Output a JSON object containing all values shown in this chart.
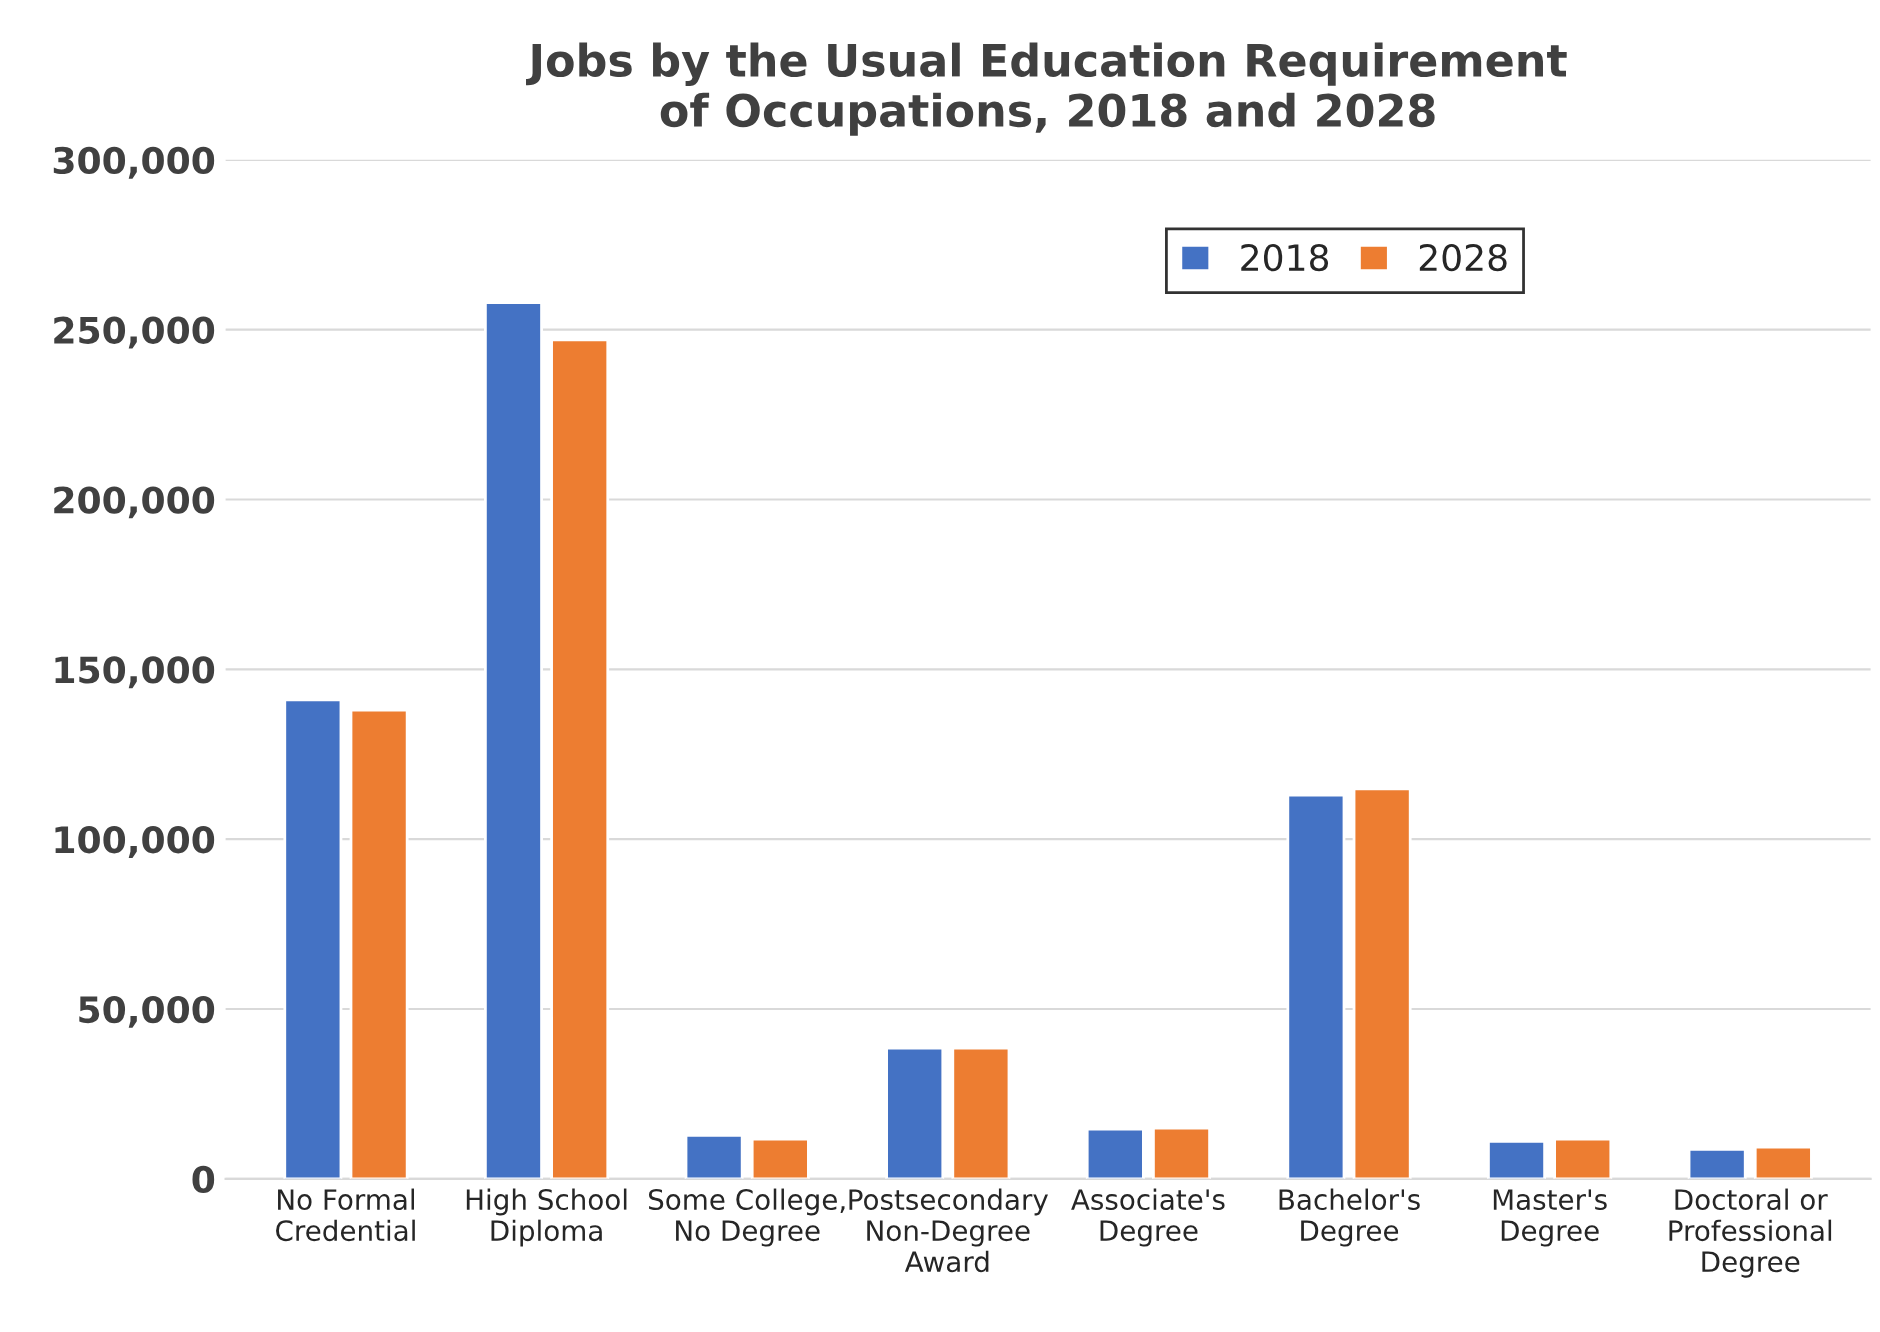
{
  "chart_data": {
    "type": "bar",
    "title": "Jobs by the Usual Education Requirement\nof Occupations, 2018 and 2028",
    "categories": [
      "No Formal\nCredential",
      "High School\nDiploma",
      "Some College,\nNo Degree",
      "Postsecondary\nNon-Degree\nAward",
      "Associate's\nDegree",
      "Bachelor's\nDegree",
      "Master's\nDegree",
      "Doctoral or\nProfessional\nDegree"
    ],
    "series": [
      {
        "name": "2018",
        "color": "#4472c4",
        "values": [
          141000,
          258000,
          12800,
          38500,
          14600,
          113000,
          11000,
          8700
        ]
      },
      {
        "name": "2028",
        "color": "#ed7d31",
        "values": [
          138000,
          247000,
          11700,
          38500,
          14900,
          114800,
          11700,
          9300
        ]
      }
    ],
    "ylim": [
      0,
      300000
    ],
    "yticks": [
      {
        "value": 0,
        "label": "0"
      },
      {
        "value": 50000,
        "label": "50,000"
      },
      {
        "value": 100000,
        "label": "100,000"
      },
      {
        "value": 150000,
        "label": "150,000"
      },
      {
        "value": 200000,
        "label": "200,000"
      },
      {
        "value": 250000,
        "label": "250,000"
      },
      {
        "value": 300000,
        "label": "300,000"
      }
    ],
    "grid": "y",
    "legend": "top right"
  }
}
